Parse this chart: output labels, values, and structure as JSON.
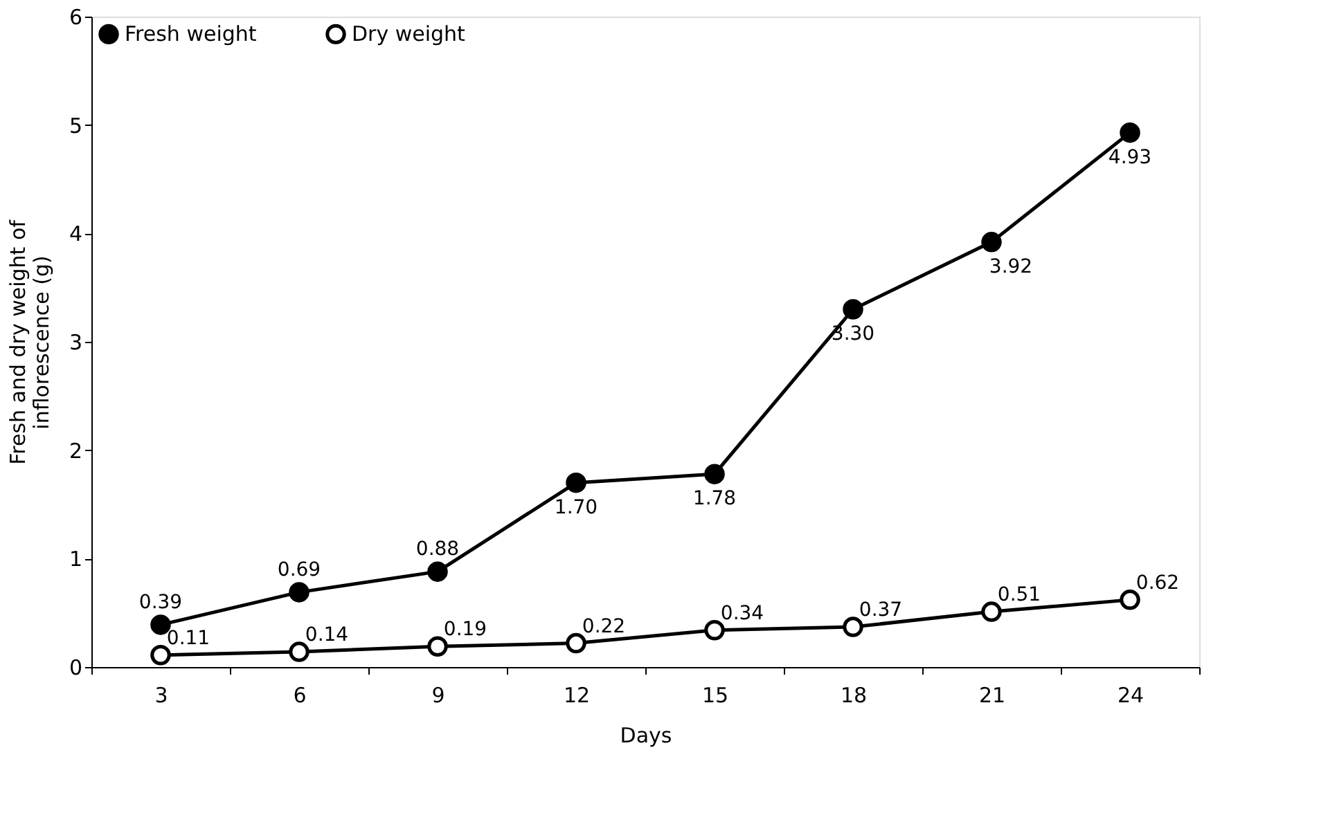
{
  "chart_data": {
    "type": "line",
    "xlabel": "Days",
    "ylabel": "Fresh  and dry weight of inflorescence (g)",
    "categories": [
      "3",
      "6",
      "9",
      "12",
      "15",
      "18",
      "21",
      "24"
    ],
    "series": [
      {
        "name": "Fresh  weight",
        "color": "#000000",
        "values": [
          0.39,
          0.69,
          0.88,
          1.7,
          1.78,
          3.3,
          3.92,
          4.93
        ],
        "value_labels": [
          "0.39",
          "0.69",
          "0.88",
          "1.70",
          "1.78",
          "3.30",
          "3.92",
          "4.93"
        ]
      },
      {
        "name": "Dry weight",
        "color": "#000000",
        "values": [
          0.11,
          0.14,
          0.19,
          0.22,
          0.34,
          0.37,
          0.51,
          0.62
        ],
        "value_labels": [
          "0.11",
          "0.14",
          "0.19",
          "0.22",
          "0.34",
          "0.37",
          "0.51",
          "0.62"
        ]
      }
    ],
    "ylim": [
      0,
      6
    ],
    "yticks": [
      0,
      1,
      2,
      3,
      4,
      5,
      6
    ],
    "grid": false,
    "legend": "top left",
    "marker": "circle",
    "line_style": "solid"
  }
}
